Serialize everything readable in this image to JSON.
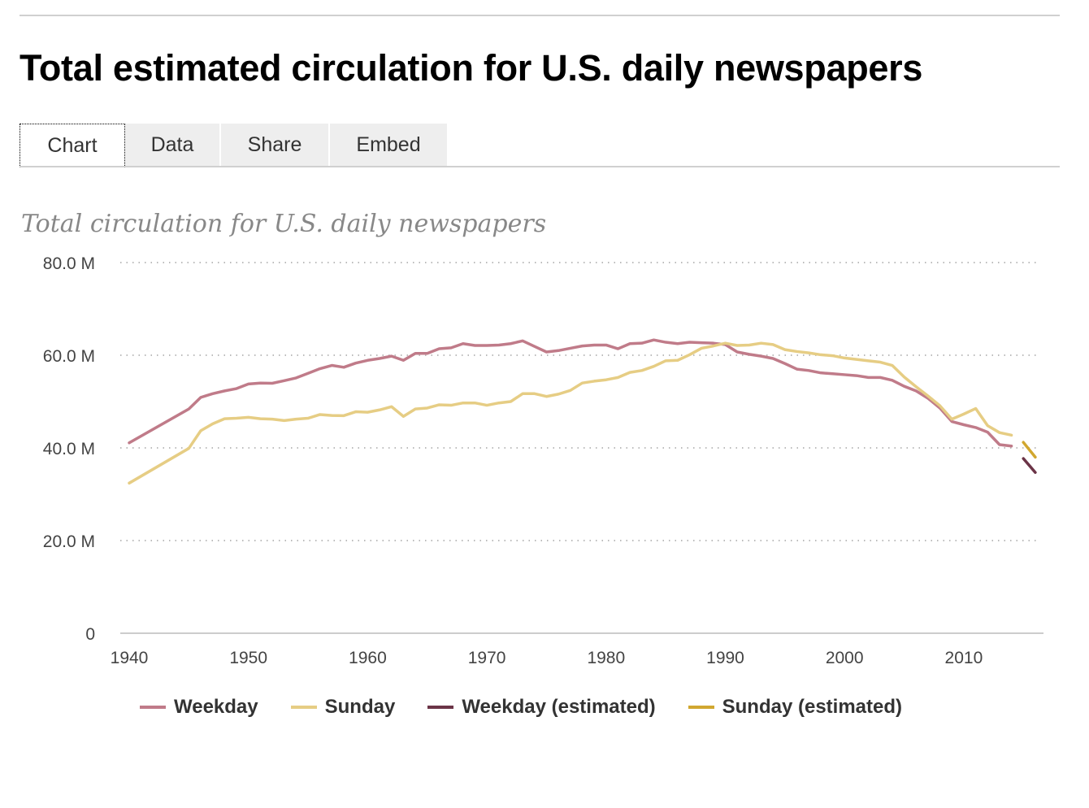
{
  "title": "Total estimated circulation for U.S. daily newspapers",
  "tabs": [
    {
      "label": "Chart"
    },
    {
      "label": "Data"
    },
    {
      "label": "Share"
    },
    {
      "label": "Embed"
    }
  ],
  "chart_data": {
    "type": "line",
    "title": "Total circulation for U.S. daily newspapers",
    "xlabel": "",
    "ylabel": "",
    "ylim": [
      0,
      80
    ],
    "xlim": [
      1940,
      2016
    ],
    "yticks": [
      {
        "value": 0,
        "label": "0"
      },
      {
        "value": 20,
        "label": "20.0 M"
      },
      {
        "value": 40,
        "label": "40.0 M"
      },
      {
        "value": 60,
        "label": "60.0 M"
      },
      {
        "value": 80,
        "label": "80.0 M"
      }
    ],
    "xticks": [
      1940,
      1950,
      1960,
      1970,
      1980,
      1990,
      2000,
      2010
    ],
    "grid": true,
    "legend_position": "bottom",
    "series": [
      {
        "name": "Weekday",
        "color": "#c07b89",
        "x": [
          1940,
          1945,
          1946,
          1947,
          1948,
          1949,
          1950,
          1951,
          1952,
          1953,
          1954,
          1955,
          1956,
          1957,
          1958,
          1959,
          1960,
          1961,
          1962,
          1963,
          1964,
          1965,
          1966,
          1967,
          1968,
          1969,
          1970,
          1971,
          1972,
          1973,
          1974,
          1975,
          1976,
          1977,
          1978,
          1979,
          1980,
          1981,
          1982,
          1983,
          1984,
          1985,
          1986,
          1987,
          1988,
          1989,
          1990,
          1991,
          1992,
          1993,
          1994,
          1995,
          1996,
          1997,
          1998,
          1999,
          2000,
          2001,
          2002,
          2003,
          2004,
          2005,
          2006,
          2007,
          2008,
          2009,
          2010,
          2011,
          2012,
          2013,
          2014
        ],
        "values": [
          41.1,
          48.4,
          50.9,
          51.7,
          52.3,
          52.8,
          53.8,
          54.0,
          53.95,
          54.5,
          55.1,
          56.1,
          57.1,
          57.8,
          57.4,
          58.3,
          58.9,
          59.3,
          59.8,
          58.9,
          60.4,
          60.4,
          61.4,
          61.6,
          62.5,
          62.1,
          62.1,
          62.2,
          62.5,
          63.1,
          61.9,
          60.7,
          61.0,
          61.5,
          62.0,
          62.2,
          62.2,
          61.4,
          62.5,
          62.6,
          63.3,
          62.8,
          62.5,
          62.8,
          62.7,
          62.6,
          62.3,
          60.7,
          60.2,
          59.8,
          59.3,
          58.2,
          57.0,
          56.7,
          56.2,
          56.0,
          55.8,
          55.6,
          55.2,
          55.2,
          54.6,
          53.3,
          52.3,
          50.7,
          48.6,
          45.7,
          45.0,
          44.4,
          43.4,
          40.7,
          40.4
        ]
      },
      {
        "name": "Sunday",
        "color": "#e6cd84",
        "x": [
          1940,
          1945,
          1946,
          1947,
          1948,
          1949,
          1950,
          1951,
          1952,
          1953,
          1954,
          1955,
          1956,
          1957,
          1958,
          1959,
          1960,
          1961,
          1962,
          1963,
          1964,
          1965,
          1966,
          1967,
          1968,
          1969,
          1970,
          1971,
          1972,
          1973,
          1974,
          1975,
          1976,
          1977,
          1978,
          1979,
          1980,
          1981,
          1982,
          1983,
          1984,
          1985,
          1986,
          1987,
          1988,
          1989,
          1990,
          1991,
          1992,
          1993,
          1994,
          1995,
          1996,
          1997,
          1998,
          1999,
          2000,
          2001,
          2002,
          2003,
          2004,
          2005,
          2006,
          2007,
          2008,
          2009,
          2010,
          2011,
          2012,
          2013,
          2014
        ],
        "values": [
          32.4,
          39.9,
          43.7,
          45.2,
          46.3,
          46.4,
          46.6,
          46.3,
          46.2,
          45.9,
          46.2,
          46.4,
          47.2,
          47.0,
          46.96,
          47.8,
          47.7,
          48.2,
          48.9,
          46.8,
          48.4,
          48.6,
          49.3,
          49.2,
          49.7,
          49.7,
          49.2,
          49.7,
          50.0,
          51.7,
          51.7,
          51.1,
          51.6,
          52.4,
          54.0,
          54.4,
          54.7,
          55.2,
          56.3,
          56.7,
          57.6,
          58.8,
          58.9,
          60.1,
          61.5,
          62.0,
          62.6,
          62.1,
          62.2,
          62.6,
          62.3,
          61.2,
          60.8,
          60.5,
          60.1,
          59.9,
          59.4,
          59.1,
          58.8,
          58.5,
          57.8,
          55.3,
          53.2,
          51.2,
          49.1,
          46.2,
          47.3,
          48.5,
          44.8,
          43.3,
          42.75
        ]
      },
      {
        "name": "Weekday (estimated)",
        "color": "#6b3447",
        "x": [
          2015,
          2016
        ],
        "values": [
          37.7,
          34.7
        ]
      },
      {
        "name": "Sunday (estimated)",
        "color": "#d1a730",
        "x": [
          2015,
          2016
        ],
        "values": [
          41.2,
          38.0
        ]
      }
    ]
  }
}
